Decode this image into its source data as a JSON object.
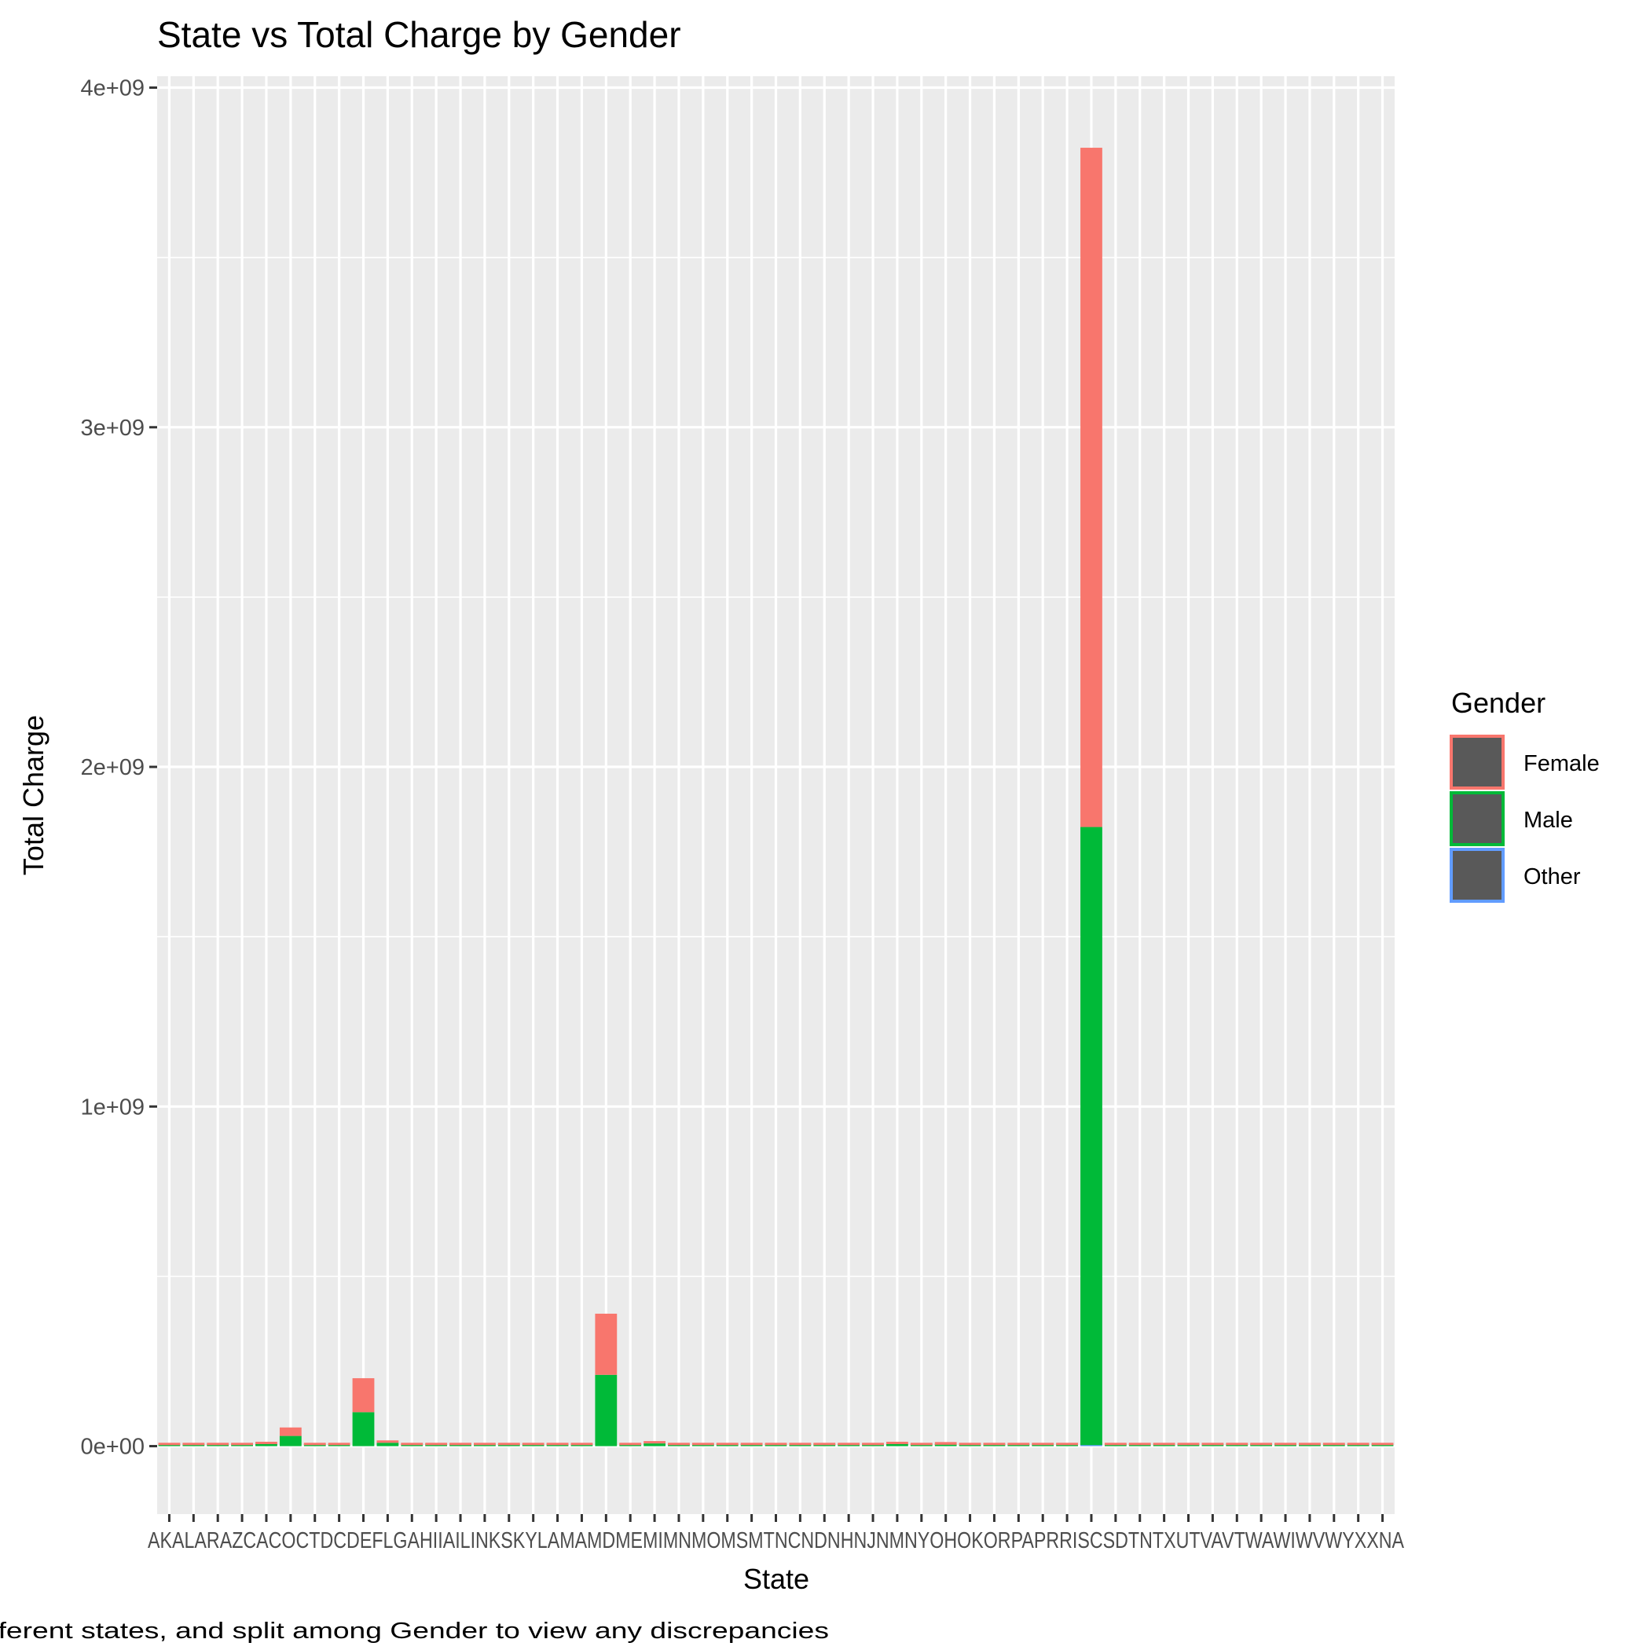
{
  "chart_data": {
    "type": "bar",
    "stacked": true,
    "title": "State vs Total Charge by Gender",
    "xlabel": "State",
    "ylabel": "Total Charge",
    "caption": "Chart to compare total charge between different states, and split among Gender to view any discrepancies",
    "ylim": [
      -200000000,
      4000000000
    ],
    "yticks": [
      0,
      1000000000,
      2000000000,
      3000000000,
      4000000000
    ],
    "ytick_labels": [
      "0e+00",
      "1e+09",
      "2e+09",
      "3e+09",
      "4e+09"
    ],
    "categories": [
      "AK",
      "AL",
      "AR",
      "AZ",
      "CA",
      "CO",
      "CT",
      "DC",
      "DE",
      "FL",
      "GA",
      "HI",
      "IA",
      "IL",
      "IN",
      "KS",
      "KY",
      "LA",
      "MA",
      "MD",
      "ME",
      "MI",
      "MN",
      "MO",
      "MS",
      "MT",
      "NC",
      "ND",
      "NH",
      "NJ",
      "NM",
      "NY",
      "OH",
      "OK",
      "OR",
      "PA",
      "PR",
      "RI",
      "SC",
      "SD",
      "TN",
      "TX",
      "UT",
      "VA",
      "VT",
      "WA",
      "WI",
      "WV",
      "WY",
      "XX",
      "NA"
    ],
    "series": [
      {
        "name": "Female",
        "color": "#F8766D",
        "values": [
          3000000,
          3000000,
          3000000,
          3000000,
          3000000,
          25000000,
          3000000,
          3000000,
          100000000,
          6000000,
          3000000,
          3000000,
          3000000,
          3000000,
          3000000,
          3000000,
          3000000,
          3000000,
          180000000,
          3000000,
          3000000,
          3000000,
          3000000,
          3000000,
          3000000,
          3000000,
          3000000,
          3000000,
          6000000,
          3000000,
          3000000,
          3000000,
          8000000,
          3000000,
          3000000,
          3000000,
          3000000,
          3000000,
          2000000000,
          3000000,
          3000000,
          3000000,
          3000000,
          3000000,
          3000000,
          3000000,
          3000000,
          3000000,
          3000000,
          3000000,
          3000000
        ]
      },
      {
        "name": "Male",
        "color": "#00BA38",
        "values": [
          3000000,
          3000000,
          3000000,
          3000000,
          6000000,
          30000000,
          3000000,
          3000000,
          100000000,
          10000000,
          3000000,
          3000000,
          3000000,
          3000000,
          3000000,
          3000000,
          3000000,
          3000000,
          210000000,
          3000000,
          8000000,
          3000000,
          3000000,
          3000000,
          3000000,
          3000000,
          3000000,
          3000000,
          3000000,
          3000000,
          6000000,
          3000000,
          4000000,
          3000000,
          3000000,
          3000000,
          3000000,
          3000000,
          1820000000,
          3000000,
          3000000,
          3000000,
          3000000,
          3000000,
          3000000,
          3000000,
          3000000,
          3000000,
          3000000,
          3000000,
          3000000
        ]
      },
      {
        "name": "Other",
        "color": "#619CFF",
        "values": [
          0,
          0,
          0,
          0,
          0,
          0,
          0,
          0,
          0,
          0,
          0,
          0,
          0,
          0,
          0,
          0,
          0,
          0,
          0,
          0,
          0,
          0,
          0,
          0,
          0,
          0,
          0,
          0,
          0,
          0,
          0,
          0,
          0,
          0,
          0,
          0,
          0,
          0,
          3000000,
          0,
          0,
          0,
          0,
          0,
          0,
          0,
          0,
          0,
          0,
          0,
          0
        ]
      }
    ],
    "x_tick_text": "AKALARAZCACOCTDCDEFLGAHIIAILINKSKYLAMAMDMEMIMNMOMSMTNCNDNHNJNMNYOHOKORPAPRRISCSDTNTXUTVAVTWAWIWVWYXXNA",
    "legend": {
      "title": "Gender",
      "position": "right"
    },
    "grid": true,
    "panel_background": "#EBEBEB"
  }
}
